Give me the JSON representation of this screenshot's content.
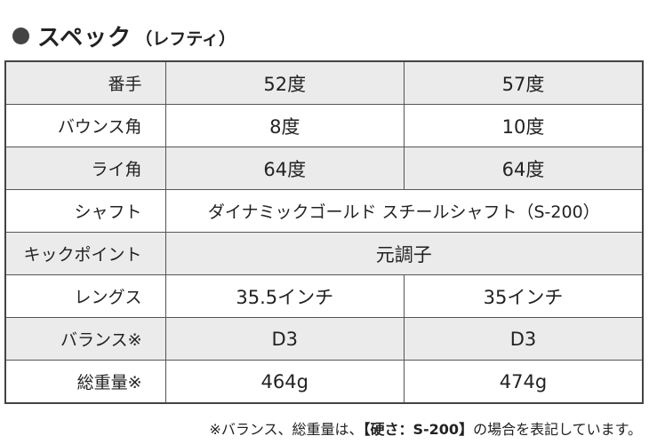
{
  "heading": {
    "title": "スペック",
    "subtitle": "（レフティ）"
  },
  "rows": [
    {
      "label": "番手",
      "values": [
        "52度",
        "57度"
      ]
    },
    {
      "label": "バウンス角",
      "values": [
        "8度",
        "10度"
      ]
    },
    {
      "label": "ライ角",
      "values": [
        "64度",
        "64度"
      ]
    },
    {
      "label": "シャフト",
      "values": [
        "ダイナミックゴールド スチールシャフト（S-200）"
      ]
    },
    {
      "label": "キックポイント",
      "values": [
        "元調子"
      ]
    },
    {
      "label": "レングス",
      "values": [
        "35.5インチ",
        "35インチ"
      ]
    },
    {
      "label": "バランス※",
      "values": [
        "D3",
        "D3"
      ]
    },
    {
      "label": "総重量※",
      "values": [
        "464g",
        "474g"
      ]
    }
  ],
  "footnote": {
    "before": "※バランス、総重量は、",
    "strong": "【硬さ：S-200】",
    "after": "の場合を表記しています。"
  }
}
